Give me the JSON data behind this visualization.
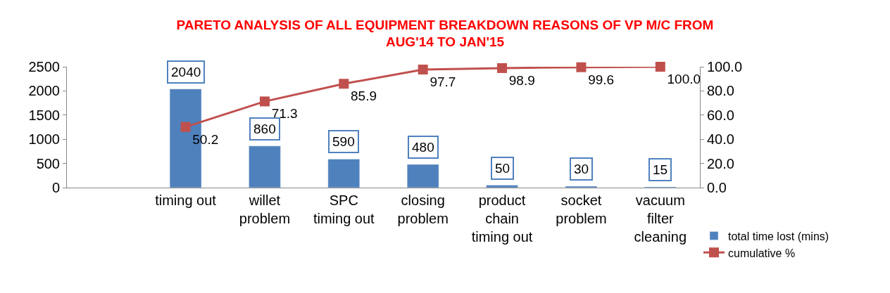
{
  "chart_data": {
    "type": "bar",
    "title": "PARETO ANALYSIS OF ALL EQUIPMENT BREAKDOWN REASONS OF VP M/C FROM\nAUG'14 TO JAN'15",
    "categories": [
      null,
      "timing out",
      "willet\nproblem",
      "SPC\ntiming out",
      "closing\nproblem",
      "product\nchain\ntiming out",
      "socket\nproblem",
      "vacuum\nfilter\ncleaning"
    ],
    "series": [
      {
        "name": "total time lost (mins)",
        "color": "#4f81bd",
        "values": [
          null,
          2040,
          860,
          590,
          480,
          50,
          30,
          15
        ],
        "value_labels": [
          null,
          "2040",
          "860",
          "590",
          "480",
          "50",
          "30",
          "15"
        ]
      },
      {
        "name": "cumulative %",
        "type": "line",
        "axis": "y2",
        "color": "#c0504d",
        "marker": "square",
        "values": [
          null,
          50.2,
          71.3,
          85.9,
          97.7,
          98.9,
          99.6,
          100.0
        ],
        "value_labels": [
          null,
          "50.2",
          "71.3",
          "85.9",
          "97.7",
          "98.9",
          "99.6",
          "100.0"
        ]
      }
    ],
    "ylim": [
      0,
      2500
    ],
    "yticks": [
      0,
      500,
      1000,
      1500,
      2000,
      2500
    ],
    "y2lim": [
      0,
      100
    ],
    "y2ticks": [
      {
        "value": 0,
        "label": "0.0"
      },
      {
        "value": 20,
        "label": "20.0"
      },
      {
        "value": 40,
        "label": "40.0"
      },
      {
        "value": 60,
        "label": "60.0"
      },
      {
        "value": 80,
        "label": "80.0"
      },
      {
        "value": 100,
        "label": "100.0"
      }
    ],
    "legend": "bottom right"
  }
}
